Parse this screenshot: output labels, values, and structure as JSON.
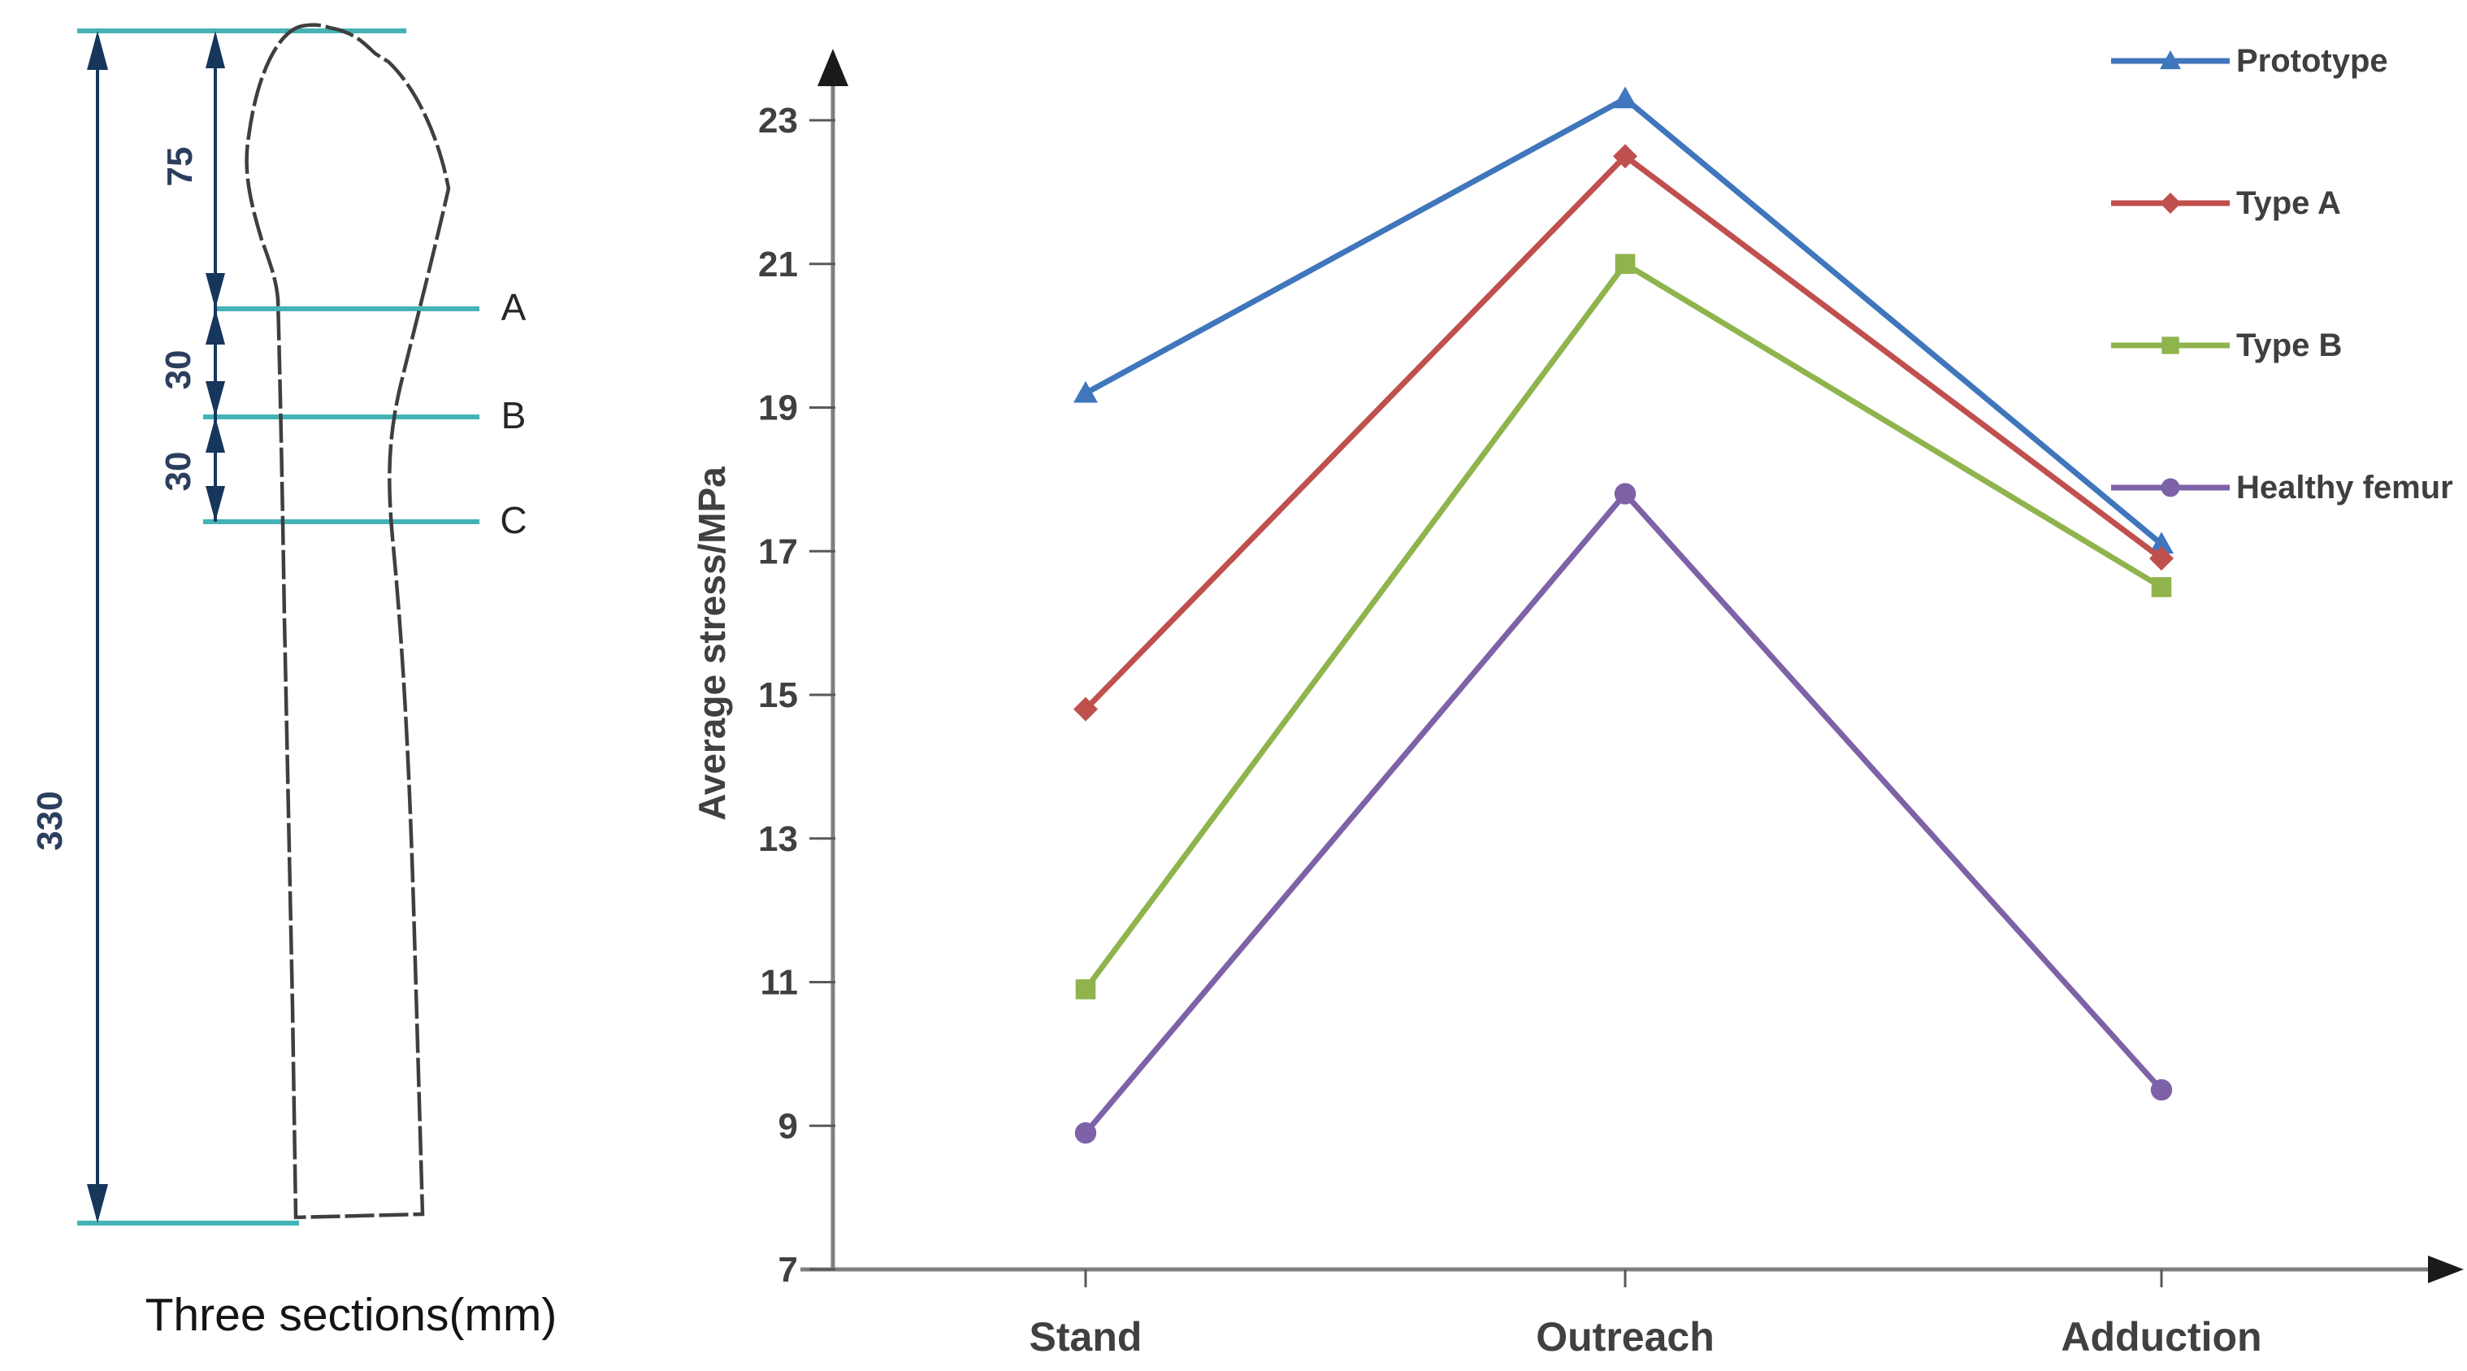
{
  "figure": {
    "background": "#ffffff"
  },
  "diagram": {
    "caption": "Three sections(mm)",
    "dimensions": {
      "total_length": "330",
      "head_to_A": "75",
      "A_to_B": "30",
      "B_to_C": "30"
    },
    "section_labels": [
      "A",
      "B",
      "C"
    ],
    "colors": {
      "section_line": "#44B3B6",
      "dimension_line": "#16365C",
      "bone_outline": "#3F3F3F"
    }
  },
  "chart_data": {
    "type": "line",
    "title": "",
    "categories": [
      "Stand",
      "Outreach",
      "Adduction"
    ],
    "series": [
      {
        "name": "Prototype",
        "marker": "triangle",
        "color": "#3F76BC",
        "values": [
          19.2,
          23.3,
          17.1
        ]
      },
      {
        "name": "Type A",
        "marker": "diamond",
        "color": "#C0504D",
        "values": [
          14.8,
          22.5,
          16.9
        ]
      },
      {
        "name": "Type B",
        "marker": "square",
        "color": "#8FB44D",
        "values": [
          10.9,
          21.0,
          16.5
        ]
      },
      {
        "name": "Healthy femur",
        "marker": "circle",
        "color": "#7E62A8",
        "values": [
          8.9,
          17.8,
          9.5
        ]
      }
    ],
    "xlabel": "",
    "ylabel": "Average stress/MPa",
    "ylim": [
      7,
      24
    ],
    "yticks": [
      7,
      9,
      11,
      13,
      15,
      17,
      19,
      21,
      23
    ],
    "grid": false,
    "legend_position": "right",
    "axis_color": "#7F7F7F",
    "tick_color": "#595959",
    "arrow_color": "#1A1A1A",
    "text_color": "#404040"
  }
}
